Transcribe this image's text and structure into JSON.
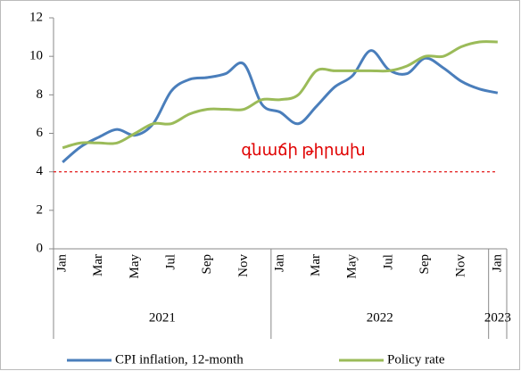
{
  "chart_data": {
    "type": "line",
    "categories": [
      "Jan",
      null,
      "Mar",
      null,
      "May",
      null,
      "Jul",
      null,
      "Sep",
      null,
      "Nov",
      null,
      "Jan",
      null,
      "Mar",
      null,
      "May",
      null,
      "Jul",
      null,
      "Sep",
      null,
      "Nov",
      null,
      "Jan"
    ],
    "years": [
      "2021",
      "2022",
      "2023"
    ],
    "series": [
      {
        "name": "CPI inflation, 12-month",
        "color": "#4a7ebb",
        "values": [
          4.5,
          5.3,
          5.8,
          6.2,
          5.9,
          6.5,
          8.2,
          8.8,
          8.9,
          9.1,
          9.6,
          7.5,
          7.1,
          6.5,
          7.4,
          8.4,
          9.0,
          10.3,
          9.3,
          9.1,
          9.9,
          9.4,
          8.7,
          8.3,
          8.1
        ]
      },
      {
        "name": "Policy rate",
        "color": "#9bbb59",
        "values": [
          5.25,
          5.5,
          5.5,
          5.5,
          6.0,
          6.5,
          6.5,
          7.0,
          7.25,
          7.25,
          7.25,
          7.75,
          7.75,
          8.0,
          9.25,
          9.25,
          9.25,
          9.25,
          9.25,
          9.5,
          10.0,
          10.0,
          10.5,
          10.75,
          10.75
        ]
      }
    ],
    "target": {
      "value": 4,
      "label": "գնաճի թիրախ",
      "color": "#e00000"
    },
    "ylim": [
      0,
      12
    ],
    "yticks": [
      0,
      2,
      4,
      6,
      8,
      10,
      12
    ]
  }
}
